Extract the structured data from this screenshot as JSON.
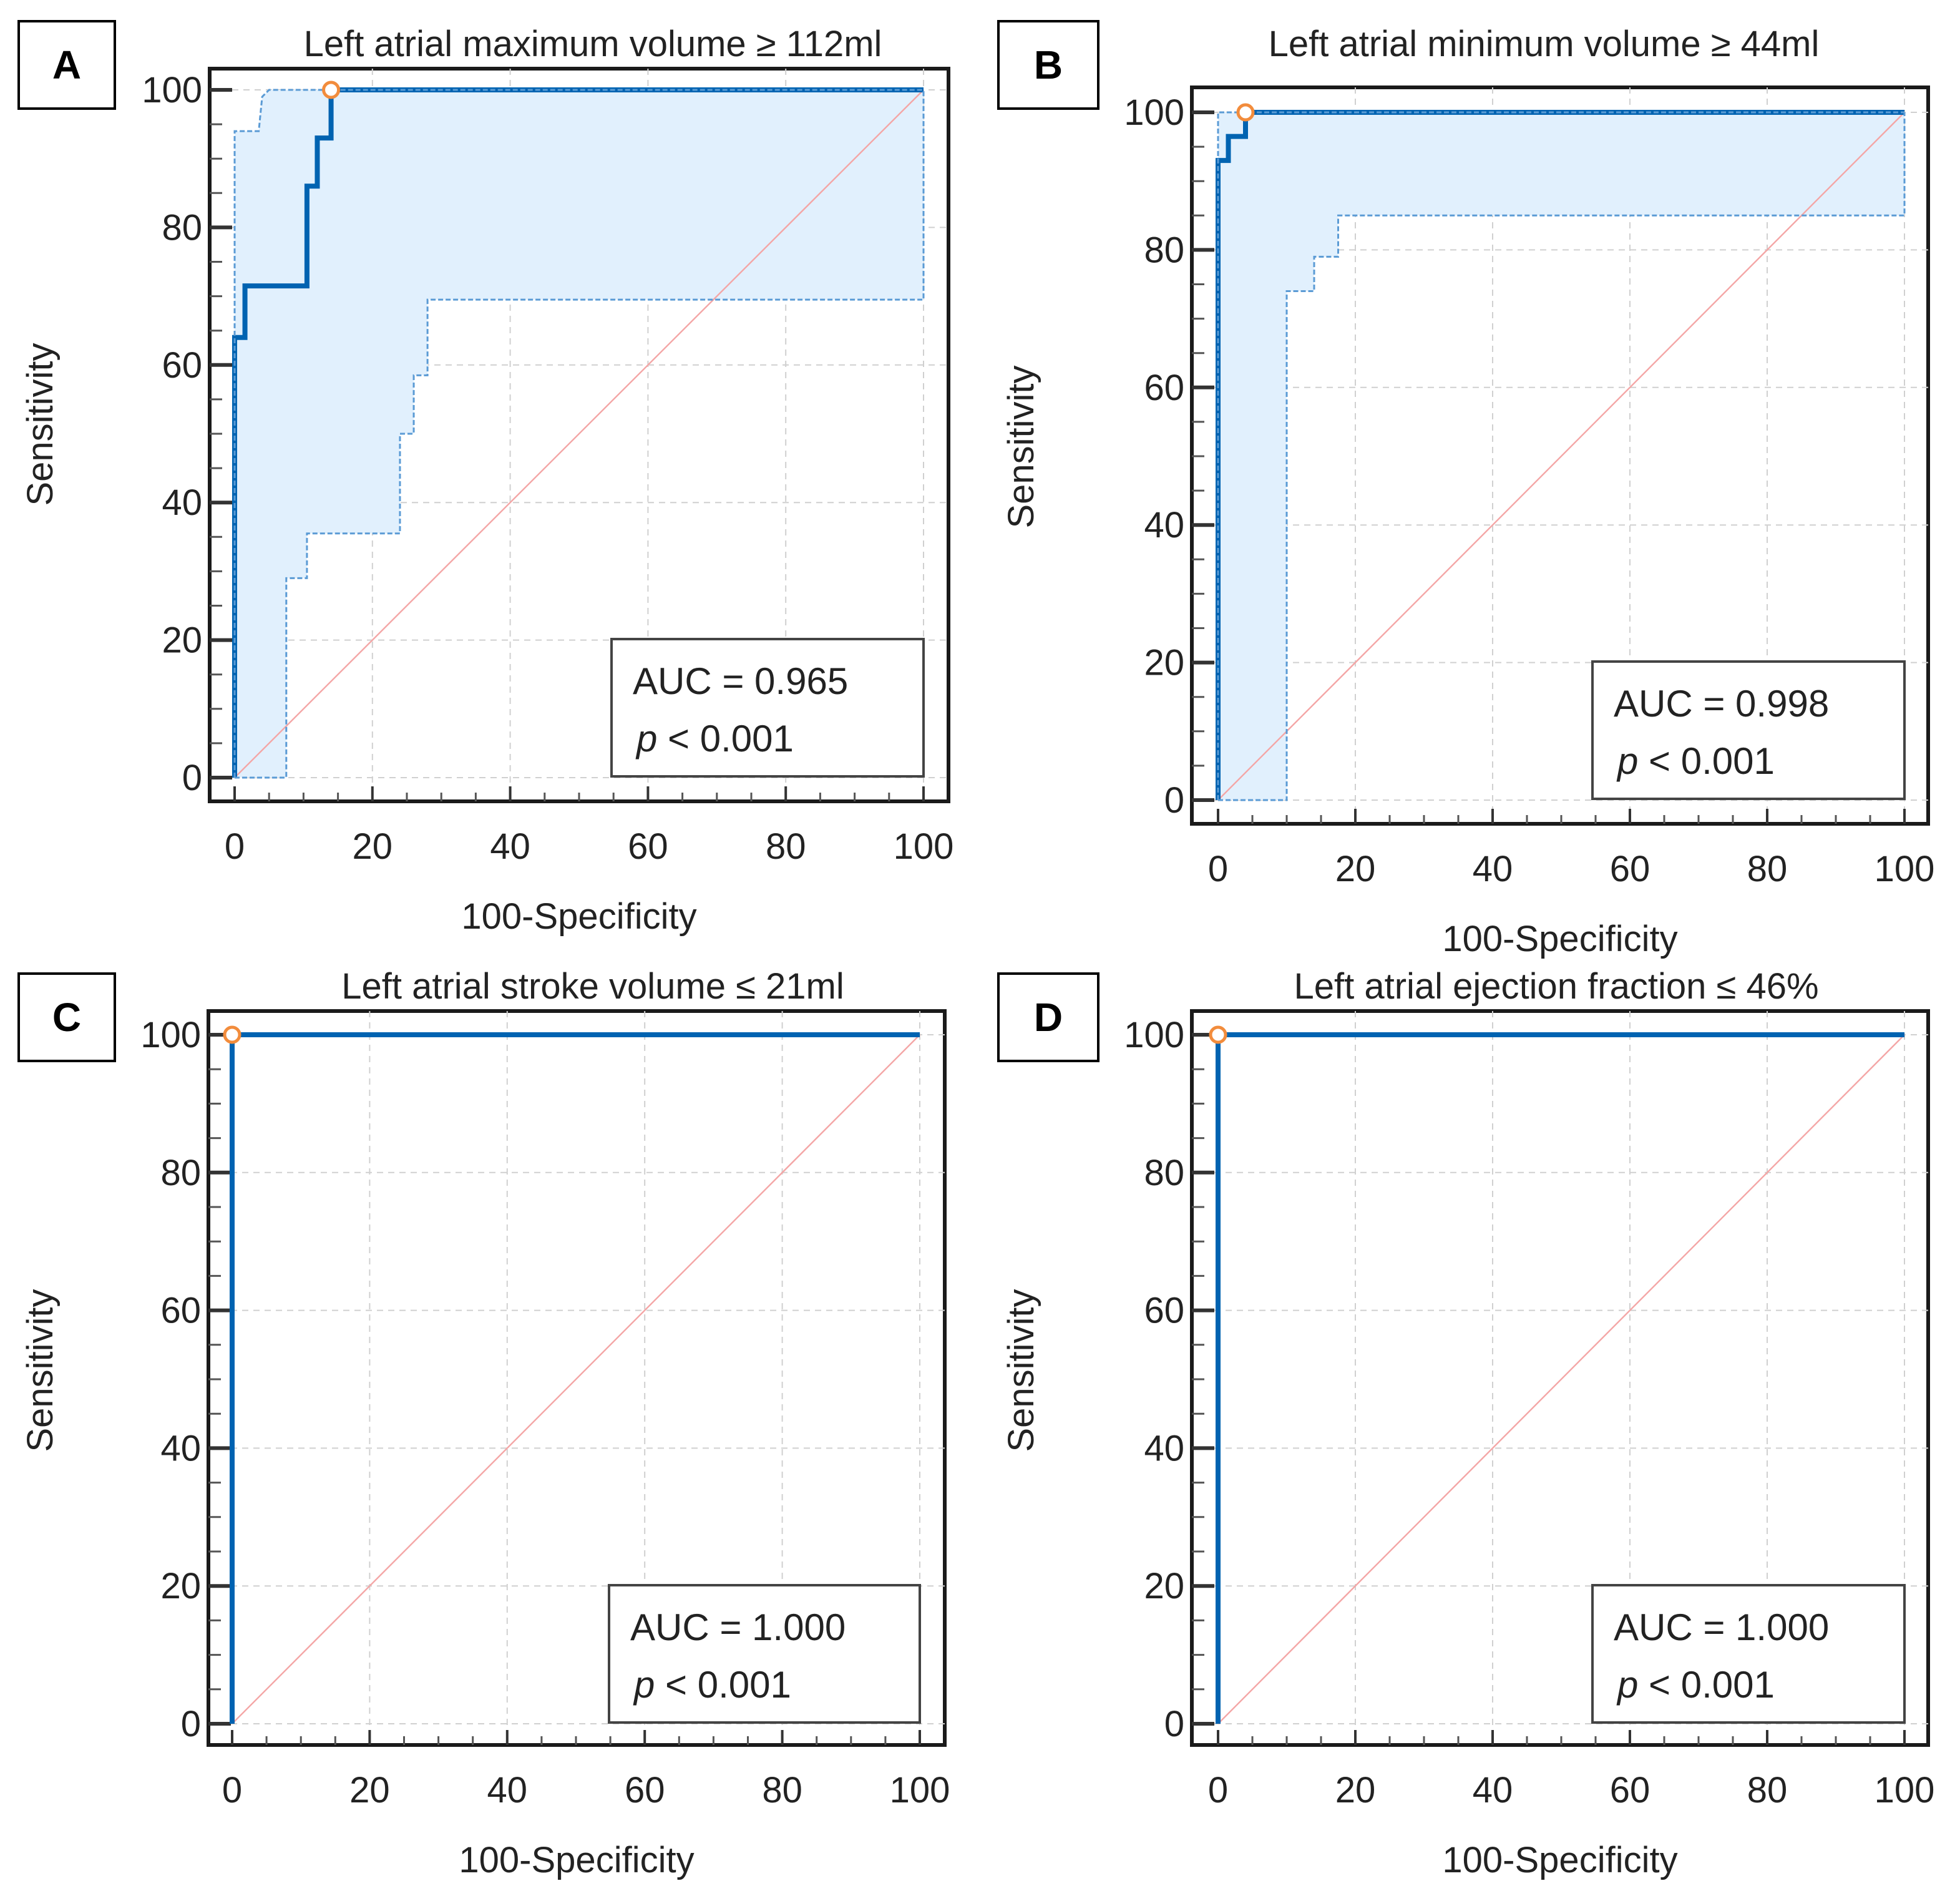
{
  "chart_data": [
    {
      "type": "line",
      "panel_label": "A",
      "title": "Left atrial maximum volume ≥ 112ml",
      "xlabel": "100-Specificity",
      "ylabel": "Sensitivity",
      "xlim": [
        0,
        100
      ],
      "ylim": [
        0,
        100
      ],
      "xticks": [
        "0",
        "20",
        "40",
        "60",
        "80",
        "100"
      ],
      "yticks": [
        "0",
        "20",
        "40",
        "60",
        "80",
        "100"
      ],
      "grid": true,
      "series": [
        {
          "name": "ROC curve",
          "x": [
            0,
            0,
            1.5,
            1.5,
            10.5,
            10.5,
            12,
            12,
            14,
            14,
            100
          ],
          "y": [
            0,
            64,
            64,
            71.5,
            71.5,
            86,
            86,
            93,
            93,
            100,
            100
          ]
        },
        {
          "name": "95% CI upper",
          "x": [
            0,
            0,
            3.5,
            4,
            5,
            100,
            100
          ],
          "y": [
            0,
            94,
            94,
            99,
            100,
            100,
            100
          ]
        },
        {
          "name": "95% CI lower",
          "x": [
            0,
            7.5,
            7.5,
            10.5,
            10.5,
            24,
            24,
            26,
            26,
            28,
            28,
            100,
            100
          ],
          "y": [
            0,
            0,
            29,
            29,
            35.5,
            35.5,
            50,
            50,
            58.5,
            58.5,
            69.5,
            69.5,
            100
          ]
        }
      ],
      "criterion_point": {
        "x": 14,
        "y": 100
      },
      "annotation": {
        "auc": "AUC = 0.965",
        "p_symbol": "p",
        "p_rest": " < 0.001"
      },
      "colors": {
        "roc": "#0063b1",
        "ci_fill": "#e1f0fd",
        "ci_line": "#5b9bd5",
        "diagonal": "#f4a6a6",
        "marker": "#f28c3c"
      }
    },
    {
      "type": "line",
      "panel_label": "B",
      "title": "Left atrial minimum volume ≥ 44ml",
      "xlabel": "100-Specificity",
      "ylabel": "Sensitivity",
      "xlim": [
        0,
        100
      ],
      "ylim": [
        0,
        100
      ],
      "xticks": [
        "0",
        "20",
        "40",
        "60",
        "80",
        "100"
      ],
      "yticks": [
        "0",
        "20",
        "40",
        "60",
        "80",
        "100"
      ],
      "grid": true,
      "series": [
        {
          "name": "ROC curve",
          "x": [
            0,
            0,
            1.5,
            1.5,
            4,
            4,
            100
          ],
          "y": [
            0,
            93,
            93,
            96.5,
            96.5,
            100,
            100
          ]
        },
        {
          "name": "95% CI upper",
          "x": [
            0,
            0,
            100,
            100
          ],
          "y": [
            0,
            100,
            100,
            100
          ]
        },
        {
          "name": "95% CI lower",
          "x": [
            0,
            10,
            10,
            14,
            14,
            17.5,
            17.5,
            100,
            100
          ],
          "y": [
            0,
            0,
            74,
            74,
            79,
            79,
            85,
            85,
            100
          ]
        }
      ],
      "criterion_point": {
        "x": 4,
        "y": 100
      },
      "annotation": {
        "auc": "AUC = 0.998",
        "p_symbol": "p",
        "p_rest": " < 0.001"
      },
      "colors": {
        "roc": "#0063b1",
        "ci_fill": "#e1f0fd",
        "ci_line": "#5b9bd5",
        "diagonal": "#f4a6a6",
        "marker": "#f28c3c"
      }
    },
    {
      "type": "line",
      "panel_label": "C",
      "title": "Left atrial stroke volume ≤ 21ml",
      "xlabel": "100-Specificity",
      "ylabel": "Sensitivity",
      "xlim": [
        0,
        100
      ],
      "ylim": [
        0,
        100
      ],
      "xticks": [
        "0",
        "20",
        "40",
        "60",
        "80",
        "100"
      ],
      "yticks": [
        "0",
        "20",
        "40",
        "60",
        "80",
        "100"
      ],
      "grid": true,
      "series": [
        {
          "name": "ROC curve",
          "x": [
            0,
            0,
            100
          ],
          "y": [
            0,
            100,
            100
          ]
        }
      ],
      "criterion_point": {
        "x": 0,
        "y": 100
      },
      "annotation": {
        "auc": "AUC = 1.000",
        "p_symbol": "p",
        "p_rest": " < 0.001"
      },
      "colors": {
        "roc": "#0063b1",
        "ci_fill": "#e1f0fd",
        "ci_line": "#5b9bd5",
        "diagonal": "#f4a6a6",
        "marker": "#f28c3c"
      }
    },
    {
      "type": "line",
      "panel_label": "D",
      "title": "Left atrial ejection fraction ≤ 46%",
      "xlabel": "100-Specificity",
      "ylabel": "Sensitivity",
      "xlim": [
        0,
        100
      ],
      "ylim": [
        0,
        100
      ],
      "xticks": [
        "0",
        "20",
        "40",
        "60",
        "80",
        "100"
      ],
      "yticks": [
        "0",
        "20",
        "40",
        "60",
        "80",
        "100"
      ],
      "grid": true,
      "series": [
        {
          "name": "ROC curve",
          "x": [
            0,
            0,
            100
          ],
          "y": [
            0,
            100,
            100
          ]
        }
      ],
      "criterion_point": {
        "x": 0,
        "y": 100
      },
      "annotation": {
        "auc": "AUC = 1.000",
        "p_symbol": "p",
        "p_rest": " < 0.001"
      },
      "colors": {
        "roc": "#0063b1",
        "ci_fill": "#e1f0fd",
        "ci_line": "#5b9bd5",
        "diagonal": "#f4a6a6",
        "marker": "#f28c3c"
      }
    }
  ]
}
